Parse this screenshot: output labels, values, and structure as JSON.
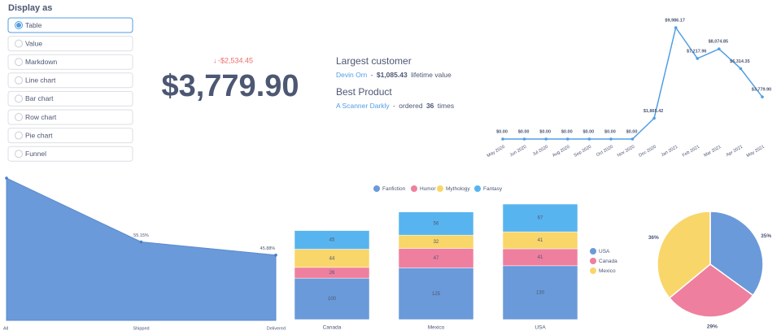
{
  "sidebar": {
    "title": "Display as",
    "options": [
      "Table",
      "Value",
      "Markdown",
      "Line chart",
      "Bar chart",
      "Row chart",
      "Pie chart",
      "Funnel"
    ],
    "selected": 0
  },
  "scalar": {
    "change": "-$2,534.45",
    "value": "$3,779.90"
  },
  "insights": {
    "customer_heading": "Largest customer",
    "customer_name": "Devin Orn",
    "separator": "-",
    "customer_value": "$1,085.43",
    "customer_suffix": "lifetime value",
    "product_heading": "Best Product",
    "product_name": "A Scanner Darkly",
    "product_prefix": "ordered",
    "product_count": 36,
    "product_suffix": "times"
  },
  "chart_data": [
    {
      "type": "line",
      "categories": [
        "May 2020",
        "Jun 2020",
        "Jul 2020",
        "Aug 2020",
        "Sep 2020",
        "Oct 2020",
        "Nov 2020",
        "Dec 2020",
        "Jan 2021",
        "Feb 2021",
        "Mar 2021",
        "Apr 2021",
        "May 2021"
      ],
      "values": [
        0,
        0,
        0,
        0,
        0,
        0,
        0,
        1865.42,
        9986.17,
        7217.96,
        8074.85,
        6314.35,
        3779.9
      ],
      "value_labels": [
        "$0.00",
        "$0.00",
        "$0.00",
        "$0.00",
        "$0.00",
        "$0.00",
        "$0.00",
        "$1,865.42",
        "$9,986.17",
        "$7,217.96",
        "$8,074.85",
        "$6,314.35",
        "$3,779.90"
      ],
      "color": "#509ee3"
    },
    {
      "type": "funnel",
      "categories": [
        "All",
        "Shipped",
        "Delivered"
      ],
      "values": [
        100,
        55.15,
        45.88
      ],
      "value_labels": [
        null,
        "55.15%",
        "45.88%"
      ],
      "color": "#6a9ad9"
    },
    {
      "type": "bar",
      "stacked": true,
      "legend": "top",
      "categories": [
        "Canada",
        "Mexico",
        "USA"
      ],
      "series": [
        {
          "name": "Fanfiction",
          "color": "#6a9ad9",
          "values": [
            100,
            125,
            130
          ]
        },
        {
          "name": "Humor",
          "color": "#ef7f9e",
          "values": [
            26,
            47,
            41
          ]
        },
        {
          "name": "Mythology",
          "color": "#f9d66a",
          "values": [
            44,
            32,
            41
          ]
        },
        {
          "name": "Fantasy",
          "color": "#58b4ee",
          "values": [
            45,
            56,
            67
          ]
        }
      ]
    },
    {
      "type": "pie",
      "legend": "left",
      "categories": [
        "USA",
        "Canada",
        "Mexico"
      ],
      "values": [
        35,
        29,
        36
      ],
      "value_labels": [
        "35%",
        "29%",
        "36%"
      ],
      "colors": [
        "#6a9ad9",
        "#ef7f9e",
        "#f9d66a"
      ]
    }
  ]
}
